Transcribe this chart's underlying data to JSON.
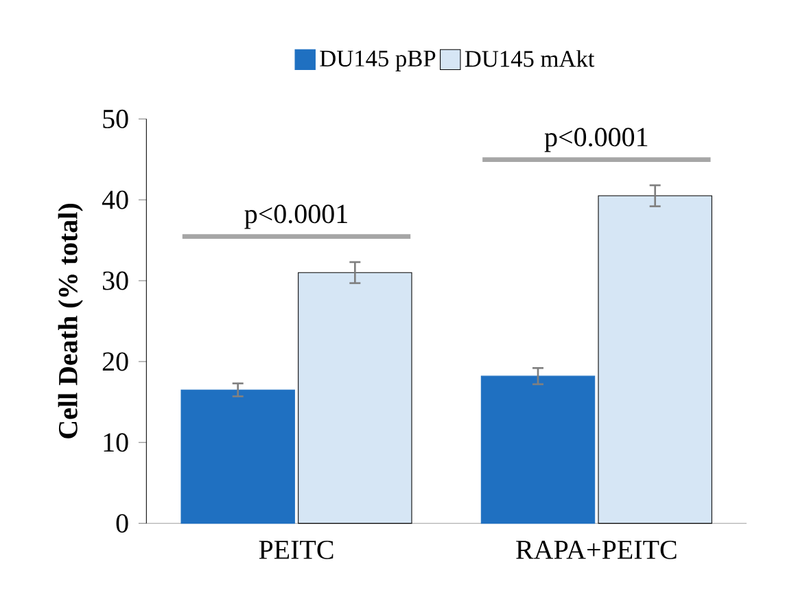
{
  "chart_data": {
    "type": "bar",
    "ylabel": "Cell Death (% total)",
    "categories": [
      "PEITC",
      "RAPA+PEITC"
    ],
    "series": [
      {
        "name": "DU145 pBP",
        "color": "#1f70c1",
        "values": [
          16.5,
          18.2
        ],
        "errors": [
          0.8,
          1.0
        ]
      },
      {
        "name": "DU145 mAkt",
        "color": "#d6e6f5",
        "values": [
          31,
          40.5
        ],
        "errors": [
          1.3,
          1.3
        ]
      }
    ],
    "ylim": [
      0,
      50
    ],
    "yticks": [
      0,
      10,
      20,
      30,
      40,
      50
    ],
    "legend": "top",
    "grid": false,
    "annotations": [
      "p<0.0001",
      "p<0.0001"
    ]
  }
}
